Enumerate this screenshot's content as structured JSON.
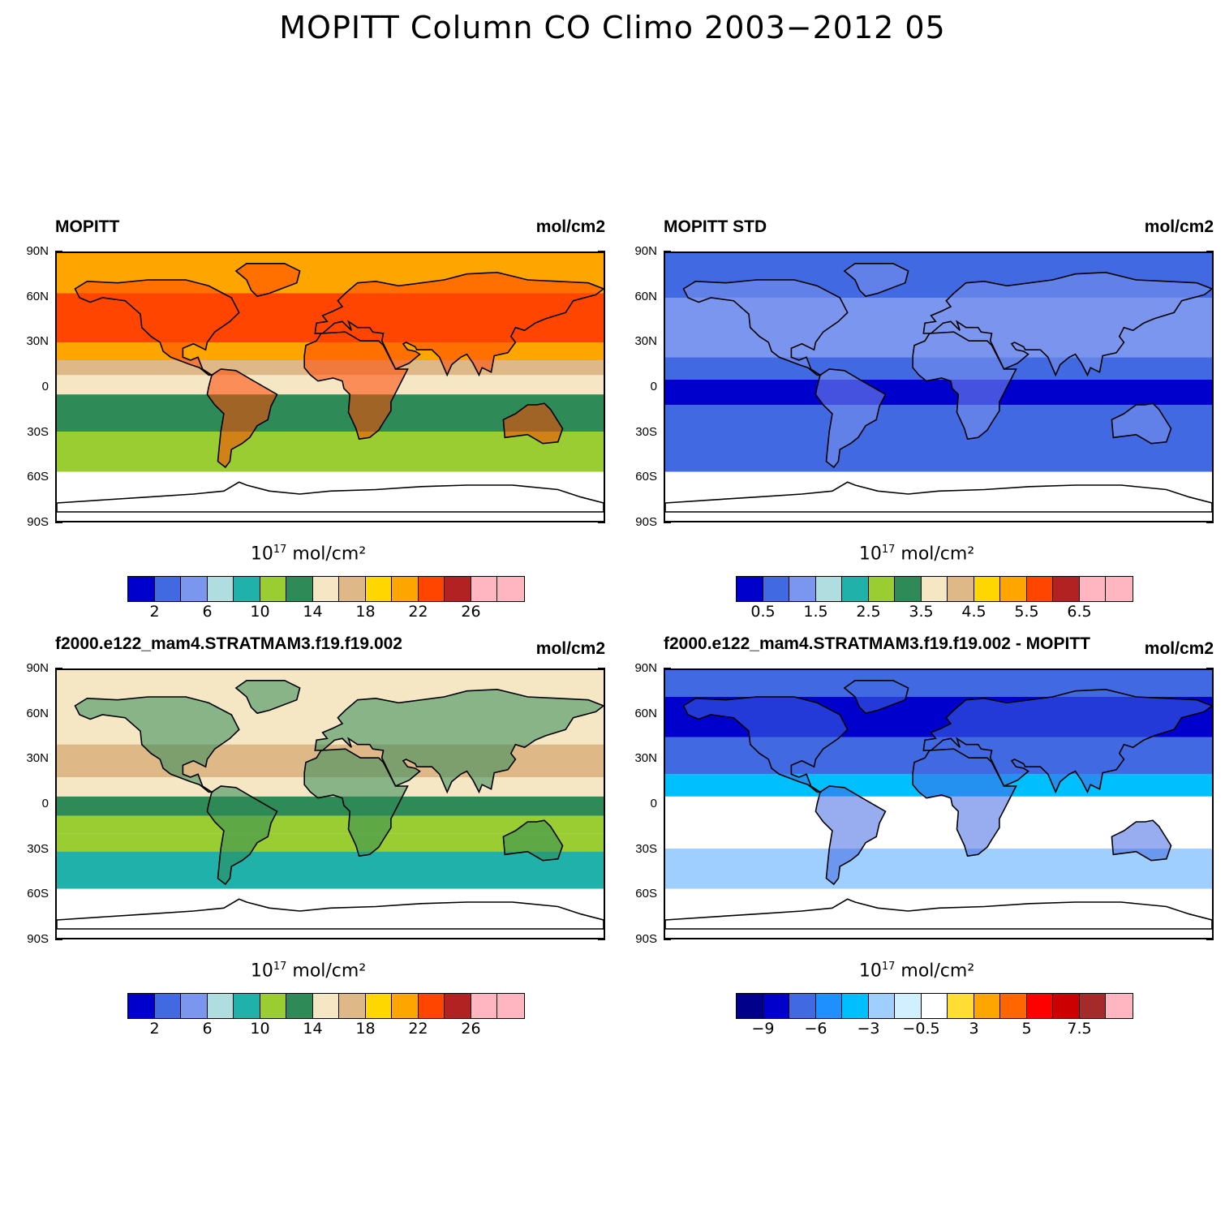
{
  "main_title": "MOPITT Column CO Climo 2003−2012 05",
  "lat_labels": [
    "90N",
    "60N",
    "30N",
    "0",
    "30S",
    "60S",
    "90S"
  ],
  "colorbar_title": "mol/cm²",
  "colorbar_title_base": "10",
  "colorbar_title_exp": "17",
  "panels": [
    {
      "title": "MOPITT",
      "units": "mol/cm2",
      "colors": [
        "#0000cd",
        "#4169e1",
        "#7b96ee",
        "#b0dde0",
        "#20b2aa",
        "#9acd32",
        "#2e8b57",
        "#f5e6c4",
        "#deb887",
        "#ffd700",
        "#ffa500",
        "#ff4500",
        "#b22222",
        "#ffb6c1",
        "#ffb6c1"
      ],
      "labels": [
        {
          "pos": 1,
          "text": "2"
        },
        {
          "pos": 3,
          "text": "6"
        },
        {
          "pos": 5,
          "text": "10"
        },
        {
          "pos": 7,
          "text": "14"
        },
        {
          "pos": 9,
          "text": "18"
        },
        {
          "pos": 11,
          "text": "22"
        },
        {
          "pos": 13,
          "text": "26"
        }
      ]
    },
    {
      "title": "MOPITT STD",
      "units": "mol/cm2",
      "colors": [
        "#0000cd",
        "#4169e1",
        "#7b96ee",
        "#b0dde0",
        "#20b2aa",
        "#9acd32",
        "#2e8b57",
        "#f5e6c4",
        "#deb887",
        "#ffd700",
        "#ffa500",
        "#ff4500",
        "#b22222",
        "#ffb6c1",
        "#ffb6c1"
      ],
      "labels": [
        {
          "pos": 1,
          "text": "0.5"
        },
        {
          "pos": 3,
          "text": "1.5"
        },
        {
          "pos": 5,
          "text": "2.5"
        },
        {
          "pos": 7,
          "text": "3.5"
        },
        {
          "pos": 9,
          "text": "4.5"
        },
        {
          "pos": 11,
          "text": "5.5"
        },
        {
          "pos": 13,
          "text": "6.5"
        }
      ]
    },
    {
      "title": "f2000.e122_mam4.STRATMAM3.f19.f19.002",
      "units": "mol/cm2",
      "colors": [
        "#0000cd",
        "#4169e1",
        "#7b96ee",
        "#b0dde0",
        "#20b2aa",
        "#9acd32",
        "#2e8b57",
        "#f5e6c4",
        "#deb887",
        "#ffd700",
        "#ffa500",
        "#ff4500",
        "#b22222",
        "#ffb6c1",
        "#ffb6c1"
      ],
      "labels": [
        {
          "pos": 1,
          "text": "2"
        },
        {
          "pos": 3,
          "text": "6"
        },
        {
          "pos": 5,
          "text": "10"
        },
        {
          "pos": 7,
          "text": "14"
        },
        {
          "pos": 9,
          "text": "18"
        },
        {
          "pos": 11,
          "text": "22"
        },
        {
          "pos": 13,
          "text": "26"
        }
      ]
    },
    {
      "title": "f2000.e122_mam4.STRATMAM3.f19.f19.002 - MOPITT",
      "units": "mol/cm2",
      "colors": [
        "#00008b",
        "#0000cd",
        "#4169e1",
        "#1e90ff",
        "#00bfff",
        "#9ecfff",
        "#d0f0ff",
        "#ffffff",
        "#ffdd33",
        "#ffa500",
        "#ff6600",
        "#ff0000",
        "#cc0000",
        "#a52a2a",
        "#ffb6c1"
      ],
      "labels": [
        {
          "pos": 1,
          "text": "−9"
        },
        {
          "pos": 3,
          "text": "−6"
        },
        {
          "pos": 5,
          "text": "−3"
        },
        {
          "pos": 7,
          "text": "−0.5"
        },
        {
          "pos": 9,
          "text": "3"
        },
        {
          "pos": 11,
          "text": "5"
        },
        {
          "pos": 13,
          "text": "7.5"
        }
      ]
    }
  ]
}
